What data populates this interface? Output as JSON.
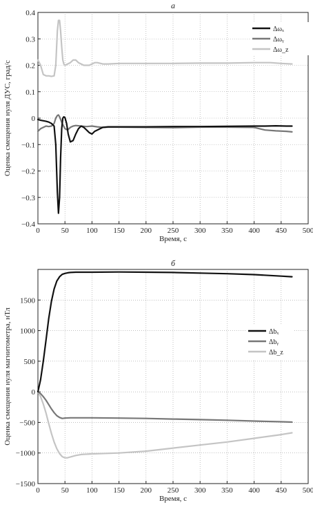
{
  "chart_data": [
    {
      "type": "line",
      "title": "а",
      "xlabel": "Время, с",
      "ylabel": "Оценка смещения нуля ДУС, град/с",
      "xlim": [
        0,
        500
      ],
      "ylim": [
        -0.4,
        0.4
      ],
      "xticks": [
        0,
        50,
        100,
        150,
        200,
        250,
        300,
        350,
        400,
        450,
        500
      ],
      "yticks": [
        -0.4,
        -0.3,
        -0.2,
        -0.1,
        0,
        0.1,
        0.2,
        0.3,
        0.4
      ],
      "grid": true,
      "legend": "top-right",
      "series": [
        {
          "name": "Δωₓ",
          "color": "#111111",
          "x": [
            0,
            5,
            10,
            15,
            20,
            25,
            30,
            33,
            36,
            38,
            40,
            42,
            44,
            46,
            48,
            50,
            53,
            56,
            60,
            65,
            70,
            75,
            80,
            85,
            90,
            95,
            100,
            105,
            110,
            115,
            120,
            130,
            140,
            150,
            200,
            250,
            300,
            350,
            400,
            420,
            440,
            460,
            470
          ],
          "y": [
            -0.005,
            -0.008,
            -0.01,
            -0.012,
            -0.015,
            -0.02,
            -0.03,
            -0.1,
            -0.28,
            -0.36,
            -0.3,
            -0.15,
            -0.04,
            0.0,
            0.005,
            0.002,
            -0.02,
            -0.06,
            -0.09,
            -0.085,
            -0.06,
            -0.04,
            -0.03,
            -0.035,
            -0.045,
            -0.055,
            -0.06,
            -0.05,
            -0.045,
            -0.04,
            -0.035,
            -0.033,
            -0.033,
            -0.033,
            -0.033,
            -0.032,
            -0.032,
            -0.031,
            -0.03,
            -0.03,
            -0.029,
            -0.03,
            -0.03
          ]
        },
        {
          "name": "Δωᵧ",
          "color": "#777777",
          "x": [
            0,
            5,
            10,
            15,
            20,
            25,
            30,
            33,
            36,
            38,
            40,
            45,
            50,
            55,
            60,
            65,
            70,
            80,
            90,
            100,
            110,
            120,
            130,
            150,
            200,
            250,
            300,
            350,
            400,
            410,
            420,
            440,
            460,
            470
          ],
          "y": [
            -0.05,
            -0.04,
            -0.035,
            -0.03,
            -0.032,
            -0.03,
            -0.02,
            0.0,
            0.01,
            0.012,
            0.005,
            -0.02,
            -0.04,
            -0.045,
            -0.035,
            -0.03,
            -0.028,
            -0.03,
            -0.032,
            -0.03,
            -0.033,
            -0.035,
            -0.034,
            -0.034,
            -0.035,
            -0.036,
            -0.034,
            -0.034,
            -0.035,
            -0.04,
            -0.045,
            -0.048,
            -0.05,
            -0.052
          ]
        },
        {
          "name": "Δω_z",
          "color": "#c4c4c4",
          "x": [
            0,
            5,
            10,
            15,
            20,
            25,
            30,
            33,
            36,
            38,
            40,
            42,
            44,
            46,
            48,
            50,
            55,
            60,
            65,
            70,
            75,
            80,
            85,
            90,
            95,
            100,
            105,
            110,
            120,
            130,
            150,
            200,
            250,
            300,
            350,
            400,
            430,
            450,
            470
          ],
          "y": [
            0.22,
            0.2,
            0.165,
            0.16,
            0.16,
            0.158,
            0.16,
            0.2,
            0.33,
            0.37,
            0.37,
            0.33,
            0.27,
            0.22,
            0.205,
            0.2,
            0.205,
            0.21,
            0.22,
            0.22,
            0.21,
            0.205,
            0.2,
            0.2,
            0.2,
            0.205,
            0.21,
            0.21,
            0.205,
            0.205,
            0.207,
            0.207,
            0.207,
            0.208,
            0.208,
            0.21,
            0.21,
            0.207,
            0.205
          ]
        }
      ]
    },
    {
      "type": "line",
      "title": "б",
      "xlabel": "Время, с",
      "ylabel": "Оценка смещения нуля магнитометра, нТл",
      "xlim": [
        0,
        500
      ],
      "ylim": [
        -1500,
        2000
      ],
      "xticks": [
        0,
        50,
        100,
        150,
        200,
        250,
        300,
        350,
        400,
        450,
        500
      ],
      "yticks": [
        -1500,
        -1000,
        -500,
        0,
        500,
        1000,
        1500
      ],
      "grid": true,
      "legend": "middle-right",
      "series": [
        {
          "name": "Δbₓ",
          "color": "#111111",
          "x": [
            0,
            5,
            10,
            15,
            20,
            25,
            30,
            35,
            40,
            45,
            50,
            55,
            60,
            70,
            80,
            100,
            150,
            200,
            250,
            300,
            350,
            400,
            450,
            470
          ],
          "y": [
            0,
            200,
            500,
            850,
            1200,
            1480,
            1680,
            1810,
            1880,
            1920,
            1935,
            1945,
            1950,
            1955,
            1955,
            1955,
            1958,
            1955,
            1950,
            1940,
            1930,
            1915,
            1890,
            1880
          ]
        },
        {
          "name": "Δbᵧ",
          "color": "#777777",
          "x": [
            0,
            5,
            10,
            15,
            20,
            25,
            30,
            35,
            40,
            45,
            50,
            60,
            80,
            100,
            150,
            200,
            250,
            300,
            350,
            400,
            450,
            470
          ],
          "y": [
            0,
            -30,
            -80,
            -140,
            -210,
            -280,
            -340,
            -390,
            -420,
            -435,
            -430,
            -425,
            -425,
            -425,
            -430,
            -435,
            -445,
            -455,
            -465,
            -478,
            -490,
            -495
          ]
        },
        {
          "name": "Δb_z",
          "color": "#c4c4c4",
          "x": [
            0,
            5,
            10,
            15,
            20,
            25,
            30,
            35,
            40,
            45,
            50,
            55,
            60,
            70,
            80,
            100,
            150,
            200,
            250,
            300,
            350,
            400,
            450,
            470
          ],
          "y": [
            0,
            -80,
            -200,
            -350,
            -520,
            -680,
            -820,
            -930,
            -1010,
            -1060,
            -1080,
            -1078,
            -1065,
            -1040,
            -1025,
            -1015,
            -1000,
            -970,
            -920,
            -870,
            -820,
            -760,
            -700,
            -670
          ]
        }
      ]
    }
  ]
}
